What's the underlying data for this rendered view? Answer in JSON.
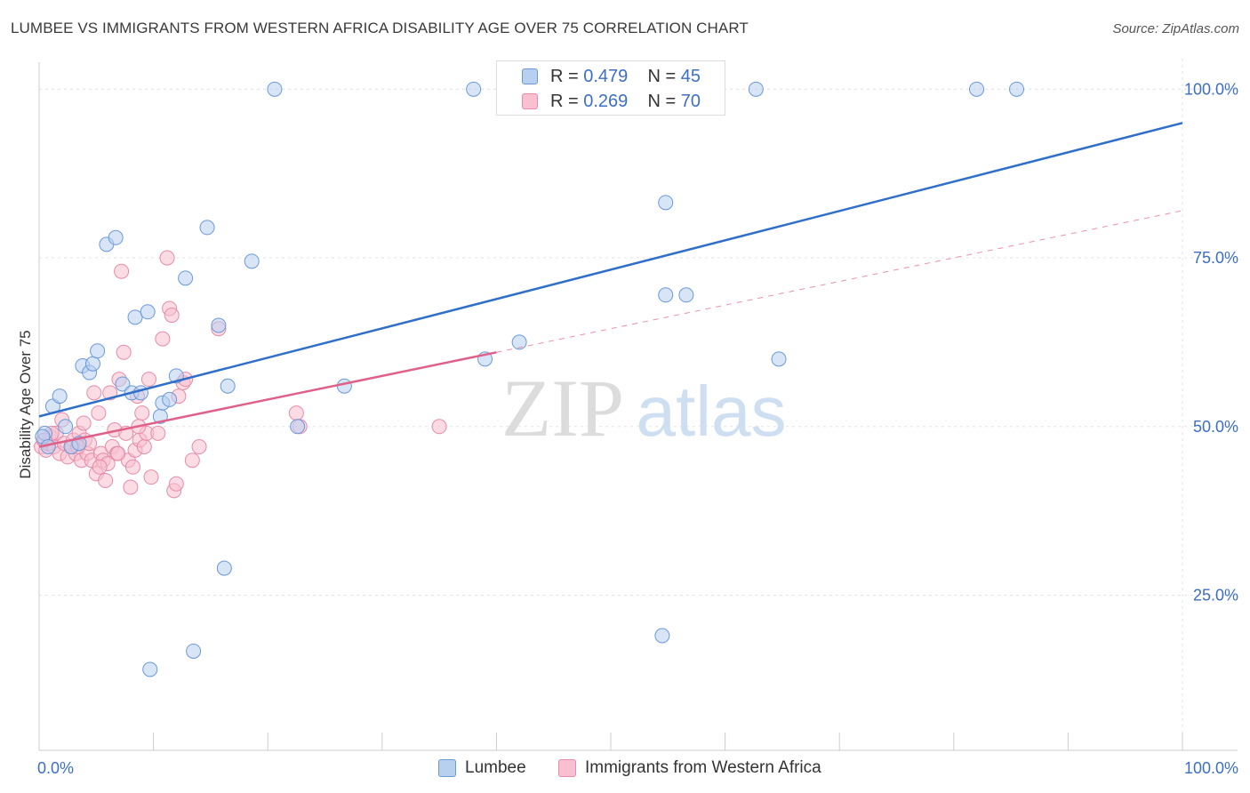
{
  "header": {
    "title": "LUMBEE VS IMMIGRANTS FROM WESTERN AFRICA DISABILITY AGE OVER 75 CORRELATION CHART",
    "source": "Source: ZipAtlas.com"
  },
  "watermark": {
    "zip": "ZIP",
    "atlas": "atlas"
  },
  "legend": {
    "series1": {
      "r_label": "R =",
      "r_value": "0.479",
      "n_label": "N =",
      "n_value": "45"
    },
    "series2": {
      "r_label": "R =",
      "r_value": "0.269",
      "n_label": "N =",
      "n_value": "70"
    }
  },
  "colors": {
    "blue_fill": "#b8d0f0",
    "blue_stroke": "#6a98d8",
    "blue_line": "#2f6fc9",
    "pink_fill": "#f8c0d0",
    "pink_stroke": "#e88aa8",
    "pink_line": "#e0608a",
    "axis_text": "#3c6fc4",
    "grid": "#e3e3e3"
  },
  "chart_data": {
    "type": "scatter",
    "title": "LUMBEE VS IMMIGRANTS FROM WESTERN AFRICA DISABILITY AGE OVER 75 CORRELATION CHART",
    "xlabel": "",
    "ylabel": "Disability Age Over 75",
    "xlim": [
      0,
      100
    ],
    "ylim": [
      2,
      104
    ],
    "x_tick_labels": [
      "0.0%",
      "100.0%"
    ],
    "y_ticks": [
      25,
      50,
      75,
      100
    ],
    "y_tick_labels": [
      "25.0%",
      "50.0%",
      "75.0%",
      "100.0%"
    ],
    "grid": true,
    "legend_position": "top-center",
    "series": [
      {
        "name": "Lumbee",
        "points": [
          [
            0.5,
            49
          ],
          [
            1.2,
            53
          ],
          [
            1.8,
            54.5
          ],
          [
            2.3,
            50
          ],
          [
            2.8,
            47
          ],
          [
            3.5,
            47.5
          ],
          [
            3.8,
            59
          ],
          [
            4.4,
            58
          ],
          [
            4.7,
            59.3
          ],
          [
            5.1,
            61.2
          ],
          [
            5.9,
            77
          ],
          [
            6.7,
            78
          ],
          [
            7.3,
            56.3
          ],
          [
            8.1,
            55
          ],
          [
            8.4,
            66.2
          ],
          [
            8.9,
            55
          ],
          [
            9.5,
            67
          ],
          [
            9.7,
            14
          ],
          [
            10.6,
            51.5
          ],
          [
            10.8,
            53.5
          ],
          [
            11.4,
            54
          ],
          [
            12.0,
            57.5
          ],
          [
            12.8,
            72
          ],
          [
            13.5,
            16.7
          ],
          [
            14.7,
            79.5
          ],
          [
            15.7,
            65
          ],
          [
            16.2,
            29
          ],
          [
            16.5,
            56
          ],
          [
            18.6,
            74.5
          ],
          [
            20.6,
            100
          ],
          [
            22.6,
            50
          ],
          [
            26.7,
            56
          ],
          [
            38.0,
            100
          ],
          [
            39.0,
            60
          ],
          [
            42.0,
            62.5
          ],
          [
            54.5,
            19
          ],
          [
            54.8,
            83.2
          ],
          [
            54.8,
            69.5
          ],
          [
            56.6,
            69.5
          ],
          [
            62.7,
            100
          ],
          [
            64.7,
            60
          ],
          [
            82.0,
            100
          ],
          [
            85.5,
            100
          ],
          [
            0.3,
            48.5
          ],
          [
            0.8,
            47
          ]
        ]
      },
      {
        "name": "Immigrants from Western Africa",
        "points": [
          [
            0.2,
            47
          ],
          [
            0.4,
            48
          ],
          [
            0.6,
            46.5
          ],
          [
            0.8,
            47.5
          ],
          [
            1.0,
            48.5
          ],
          [
            1.3,
            47
          ],
          [
            1.5,
            49
          ],
          [
            1.8,
            46
          ],
          [
            2.0,
            51
          ],
          [
            2.2,
            47.5
          ],
          [
            2.5,
            45.5
          ],
          [
            2.8,
            47
          ],
          [
            3.0,
            48
          ],
          [
            3.2,
            46
          ],
          [
            3.5,
            49
          ],
          [
            3.7,
            45
          ],
          [
            3.9,
            50.5
          ],
          [
            4.0,
            48
          ],
          [
            4.2,
            46
          ],
          [
            4.4,
            47.5
          ],
          [
            4.6,
            45
          ],
          [
            4.8,
            55
          ],
          [
            5.0,
            43
          ],
          [
            5.2,
            52
          ],
          [
            5.4,
            46
          ],
          [
            5.6,
            45
          ],
          [
            5.8,
            42
          ],
          [
            6.0,
            44.5
          ],
          [
            6.2,
            55
          ],
          [
            6.4,
            47
          ],
          [
            6.6,
            49.5
          ],
          [
            6.8,
            46
          ],
          [
            7.0,
            57
          ],
          [
            7.2,
            73
          ],
          [
            7.4,
            61
          ],
          [
            7.6,
            49
          ],
          [
            7.8,
            45
          ],
          [
            8.0,
            41
          ],
          [
            8.2,
            44
          ],
          [
            8.4,
            46.5
          ],
          [
            8.6,
            54.5
          ],
          [
            8.8,
            48
          ],
          [
            9.0,
            52
          ],
          [
            9.2,
            47
          ],
          [
            9.4,
            49
          ],
          [
            9.6,
            57
          ],
          [
            9.8,
            42.5
          ],
          [
            10.4,
            49
          ],
          [
            10.8,
            63
          ],
          [
            11.2,
            75
          ],
          [
            11.4,
            67.5
          ],
          [
            11.6,
            66.5
          ],
          [
            11.8,
            40.5
          ],
          [
            12.0,
            41.5
          ],
          [
            12.2,
            54.5
          ],
          [
            12.6,
            56.5
          ],
          [
            12.8,
            57
          ],
          [
            13.4,
            45
          ],
          [
            14.0,
            47
          ],
          [
            15.7,
            64.5
          ],
          [
            22.5,
            52
          ],
          [
            22.8,
            50
          ],
          [
            35.0,
            50
          ],
          [
            1.1,
            49
          ],
          [
            2.9,
            47
          ],
          [
            5.3,
            44
          ],
          [
            6.9,
            46
          ],
          [
            8.7,
            50
          ],
          [
            0.5,
            48
          ],
          [
            3.4,
            47
          ]
        ]
      }
    ],
    "trend_lines": [
      {
        "series": "Lumbee",
        "x": [
          0,
          100
        ],
        "y": [
          51.5,
          95
        ],
        "style": "solid"
      },
      {
        "series": "Immigrants from Western Africa",
        "x": [
          0,
          40
        ],
        "y": [
          47,
          61
        ],
        "style": "solid"
      },
      {
        "series": "Immigrants from Western Africa",
        "x": [
          40,
          100
        ],
        "y": [
          61,
          82
        ],
        "style": "dashed"
      }
    ]
  },
  "bottom_legend": {
    "series1": "Lumbee",
    "series2": "Immigrants from Western Africa"
  }
}
